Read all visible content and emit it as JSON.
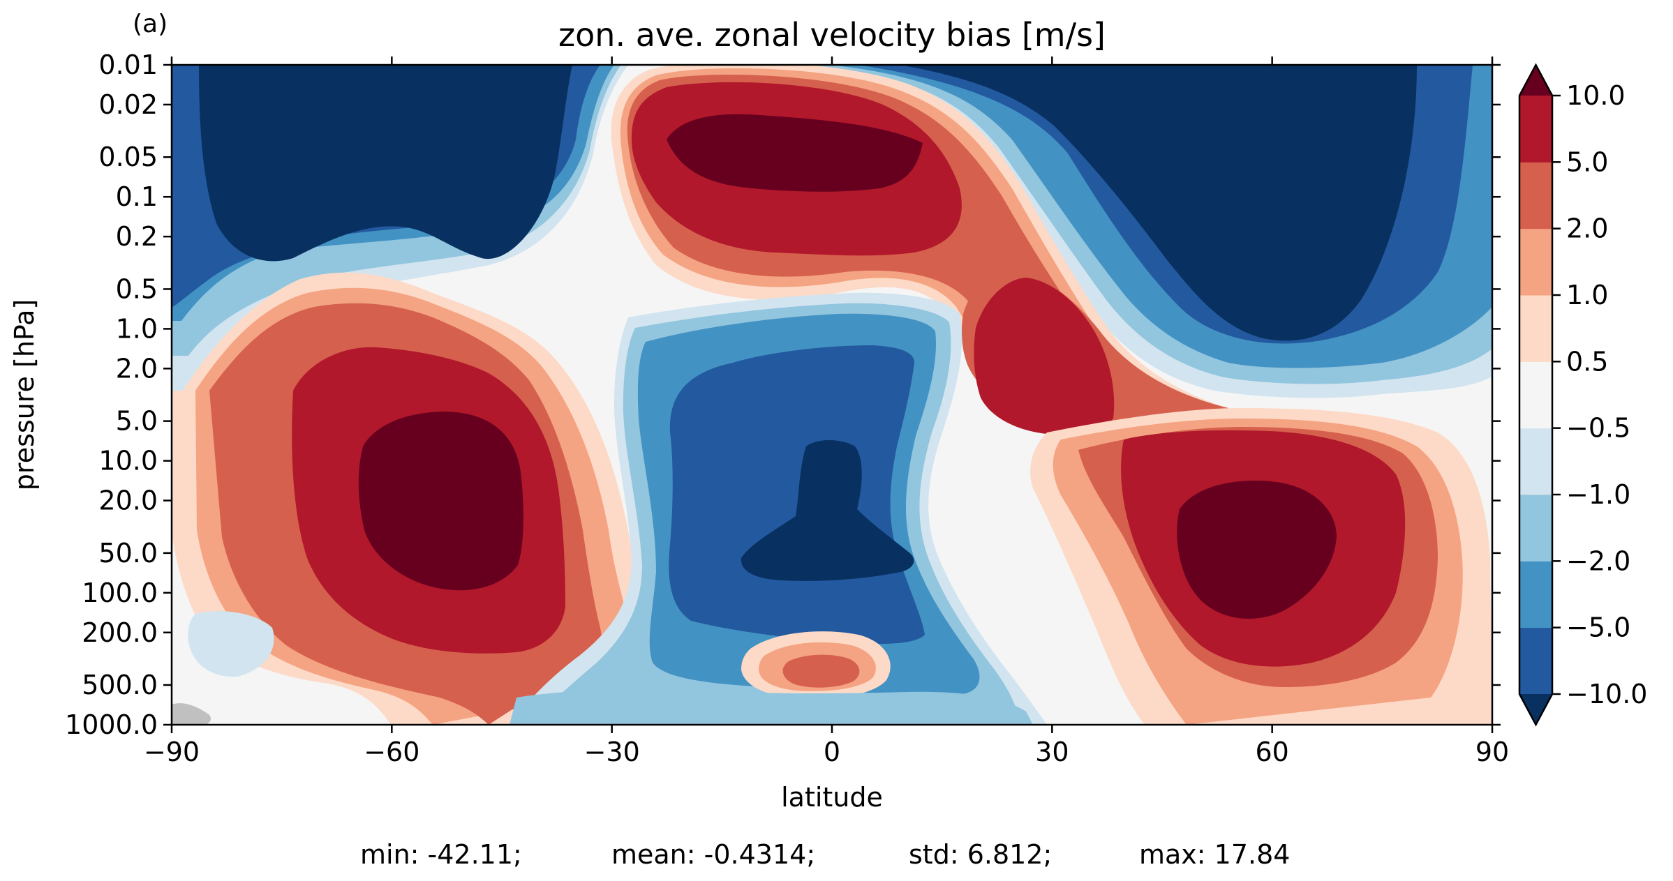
{
  "chart_data": {
    "type": "heatmap",
    "panel_label": "(a)",
    "title": "zon. ave. zonal velocity bias [m/s]",
    "xlabel": "latitude",
    "ylabel": "pressure [hPa]",
    "x_scale": "linear",
    "y_scale": "log",
    "y_inverted": true,
    "xlim": [
      -90,
      90
    ],
    "ylim": [
      1000.0,
      0.01
    ],
    "x_ticks": [
      -90,
      -60,
      -30,
      0,
      30,
      60,
      90
    ],
    "x_tick_labels": [
      "−90",
      "−60",
      "−30",
      "0",
      "30",
      "60",
      "90"
    ],
    "y_ticks": [
      0.01,
      0.02,
      0.05,
      0.1,
      0.2,
      0.5,
      1.0,
      2.0,
      5.0,
      10.0,
      20.0,
      50.0,
      100.0,
      200.0,
      500.0,
      1000.0
    ],
    "y_tick_labels": [
      "0.01",
      "0.02",
      "0.05",
      "0.1",
      "0.2",
      "0.5",
      "1.0",
      "2.0",
      "5.0",
      "10.0",
      "20.0",
      "50.0",
      "100.0",
      "200.0",
      "500.0",
      "1000.0"
    ],
    "colorbar": {
      "levels": [
        -10.0,
        -5.0,
        -2.0,
        -1.0,
        -0.5,
        0.5,
        1.0,
        2.0,
        5.0,
        10.0
      ],
      "tick_labels": [
        "−10.0",
        "−5.0",
        "−2.0",
        "−1.0",
        "−0.5",
        "0.5",
        "1.0",
        "2.0",
        "5.0",
        "10.0"
      ],
      "colors": [
        "#23599f",
        "#4392c4",
        "#92c5de",
        "#d1e4ef",
        "#f5f5f5",
        "#fddac7",
        "#f4a482",
        "#d6604e",
        "#b2182b"
      ],
      "extend_low_color": "#083061",
      "extend_high_color": "#67001f"
    },
    "missing_color": "#c0c0c0",
    "field_regions": [
      {
        "name": "northern stratosphere",
        "value": -15,
        "lat": [
          42,
          80
        ],
        "p": [
          0.01,
          0.4
        ]
      },
      {
        "name": "southern stratosphere",
        "value": -15,
        "lat": [
          -88,
          -40
        ],
        "p": [
          0.01,
          0.18
        ]
      },
      {
        "name": "equatorial upper stratosphere",
        "value": 12,
        "lat": [
          -22,
          12
        ],
        "p": [
          0.03,
          0.1
        ]
      },
      {
        "name": "southern jet core",
        "value": 14,
        "lat": [
          -64,
          -46
        ],
        "p": [
          5,
          80
        ]
      },
      {
        "name": "northern jet core",
        "value": 14,
        "lat": [
          47,
          68
        ],
        "p": [
          20,
          180
        ]
      },
      {
        "name": "subtropical upper stratosphere",
        "value": 7,
        "lat": [
          19,
          30
        ],
        "p": [
          0.6,
          4
        ]
      },
      {
        "name": "equatorial stratosphere core",
        "value": -14,
        "lat": [
          -12,
          12
        ],
        "p": [
          10,
          80
        ]
      },
      {
        "name": "tropical lower troposphere",
        "value": 1.5,
        "lat": [
          -6,
          6
        ],
        "p": [
          400,
          600
        ]
      }
    ],
    "stats": {
      "min_text": "min: -42.11;",
      "mean_text": "mean: -0.4314;",
      "std_text": "std: 6.812;",
      "max_text": "max: 17.84"
    }
  }
}
